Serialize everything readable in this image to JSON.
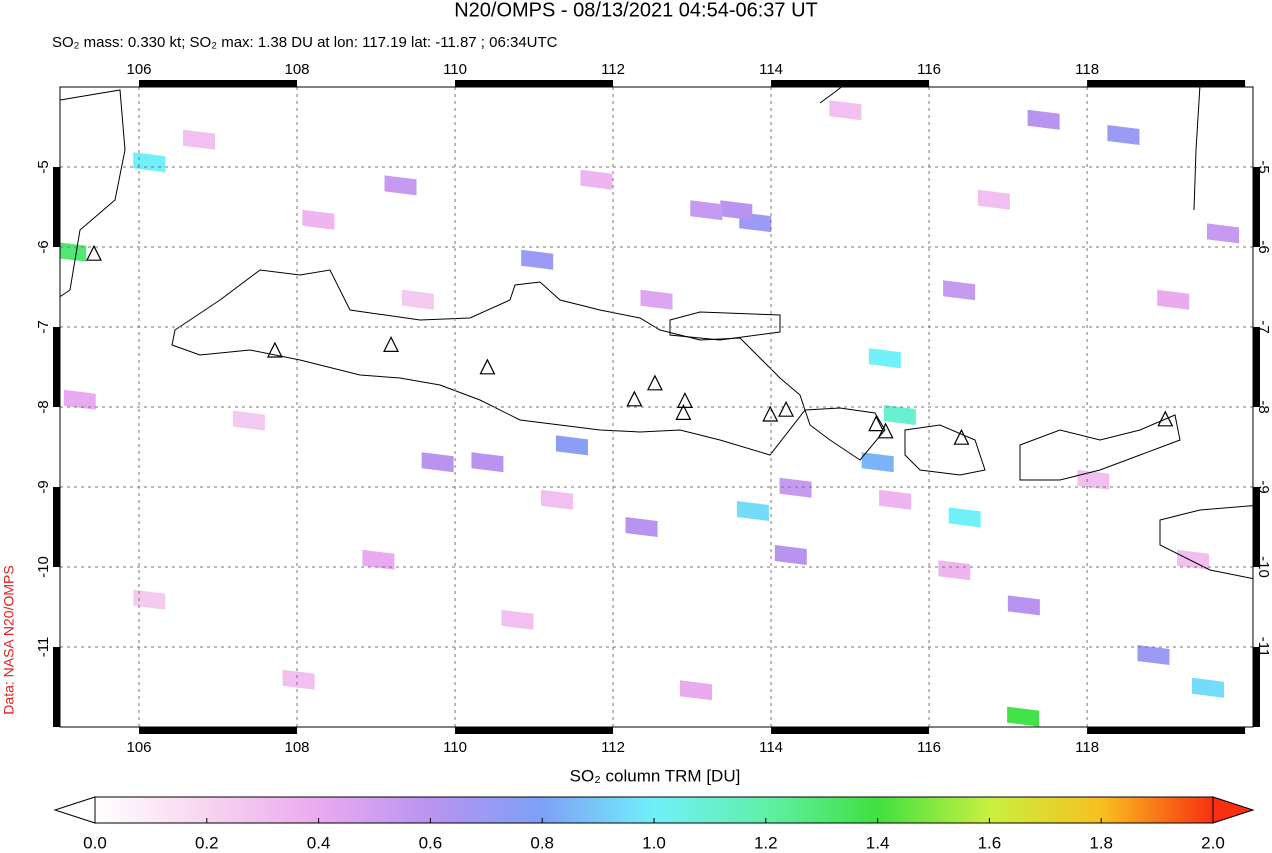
{
  "chart_data": {
    "type": "map",
    "title": "N20/OMPS - 08/13/2021 04:54-06:37 UT",
    "subtitle": "SO₂ mass: 0.330 kt; SO₂ max: 1.38 DU at lon: 117.19 lat: -11.87 ; 06:34UTC",
    "source": "Data: NASA N20/OMPS",
    "colorbar_label": "SO₂ column TRM [DU]",
    "xlim": [
      105.0,
      120.1
    ],
    "ylim": [
      -12.0,
      -4.0
    ],
    "xticks": [
      106,
      108,
      110,
      112,
      114,
      116,
      118
    ],
    "yticks": [
      -5,
      -6,
      -7,
      -8,
      -9,
      -10,
      -11
    ],
    "grid": true,
    "clim": [
      0,
      2
    ],
    "cticks": [
      {
        "value": 0,
        "label": "0.0"
      },
      {
        "value": 0.2,
        "label": "0.2"
      },
      {
        "value": 0.4,
        "label": "0.4"
      },
      {
        "value": 0.6,
        "label": "0.6"
      },
      {
        "value": 0.8,
        "label": "0.8"
      },
      {
        "value": 1.0,
        "label": "1.0"
      },
      {
        "value": 1.2,
        "label": "1.2"
      },
      {
        "value": 1.4,
        "label": "1.4"
      },
      {
        "value": 1.6,
        "label": "1.6"
      },
      {
        "value": 1.8,
        "label": "1.8"
      },
      {
        "value": 2.0,
        "label": "2.0"
      }
    ],
    "colorscale": [
      "#ffffff",
      "#f8d4f0",
      "#eaaaf0",
      "#b894f0",
      "#7ea0f8",
      "#70f0f8",
      "#60f0a8",
      "#40e040",
      "#c8f040",
      "#f8c020",
      "#f83010"
    ],
    "pixels": {
      "lon": [
        105.13,
        106.13,
        115.44,
        115.63,
        116.45,
        113.77,
        119.53,
        117.19,
        115.35,
        111.48,
        111.04,
        113.8,
        118.46,
        118.84,
        113.56,
        117.45,
        116.38,
        119.72,
        109.31,
        112.36,
        114.25,
        117.2,
        110.41,
        109.78,
        114.31,
        113.18,
        106.76,
        108.27,
        107.39,
        109.03,
        110.79,
        112.55,
        114.94,
        116.32,
        118.08,
        119.09,
        106.13,
        108.02,
        113.05,
        115.57,
        116.82,
        109.53,
        111.79,
        119.34,
        105.25,
        111.29
      ],
      "lat": [
        -6.06,
        -4.94,
        -7.39,
        -8.1,
        -9.38,
        -9.3,
        -11.51,
        -11.87,
        -8.69,
        -8.48,
        -6.16,
        -5.69,
        -4.6,
        -11.1,
        -5.54,
        -4.41,
        -6.54,
        -5.83,
        -5.23,
        -9.5,
        -9.85,
        -10.48,
        -8.69,
        -8.69,
        -9.01,
        -5.54,
        -4.66,
        -5.66,
        -8.17,
        -9.91,
        -10.66,
        -6.66,
        -4.29,
        -10.04,
        -8.91,
        -6.66,
        -10.41,
        -11.41,
        -11.54,
        -9.16,
        -5.41,
        -6.66,
        -5.16,
        -9.91,
        -7.91,
        -9.16
      ],
      "values": [
        1.3,
        1.0,
        1.0,
        1.1,
        1.0,
        0.95,
        0.95,
        1.38,
        0.85,
        0.75,
        0.7,
        0.7,
        0.7,
        0.7,
        0.6,
        0.6,
        0.55,
        0.55,
        0.55,
        0.6,
        0.6,
        0.6,
        0.6,
        0.6,
        0.55,
        0.55,
        0.3,
        0.35,
        0.25,
        0.4,
        0.3,
        0.45,
        0.3,
        0.35,
        0.3,
        0.4,
        0.25,
        0.3,
        0.4,
        0.35,
        0.3,
        0.25,
        0.35,
        0.3,
        0.4,
        0.3
      ]
    },
    "volcanoes": {
      "lon": [
        105.43,
        107.72,
        109.19,
        110.41,
        112.27,
        112.53,
        112.91,
        112.89,
        113.99,
        114.19,
        115.33,
        115.45,
        116.41,
        118.99
      ],
      "lat": [
        -6.09,
        -7.3,
        -7.23,
        -7.51,
        -7.91,
        -7.71,
        -7.93,
        -8.08,
        -8.1,
        -8.04,
        -8.22,
        -8.31,
        -8.39,
        -8.16
      ]
    }
  }
}
